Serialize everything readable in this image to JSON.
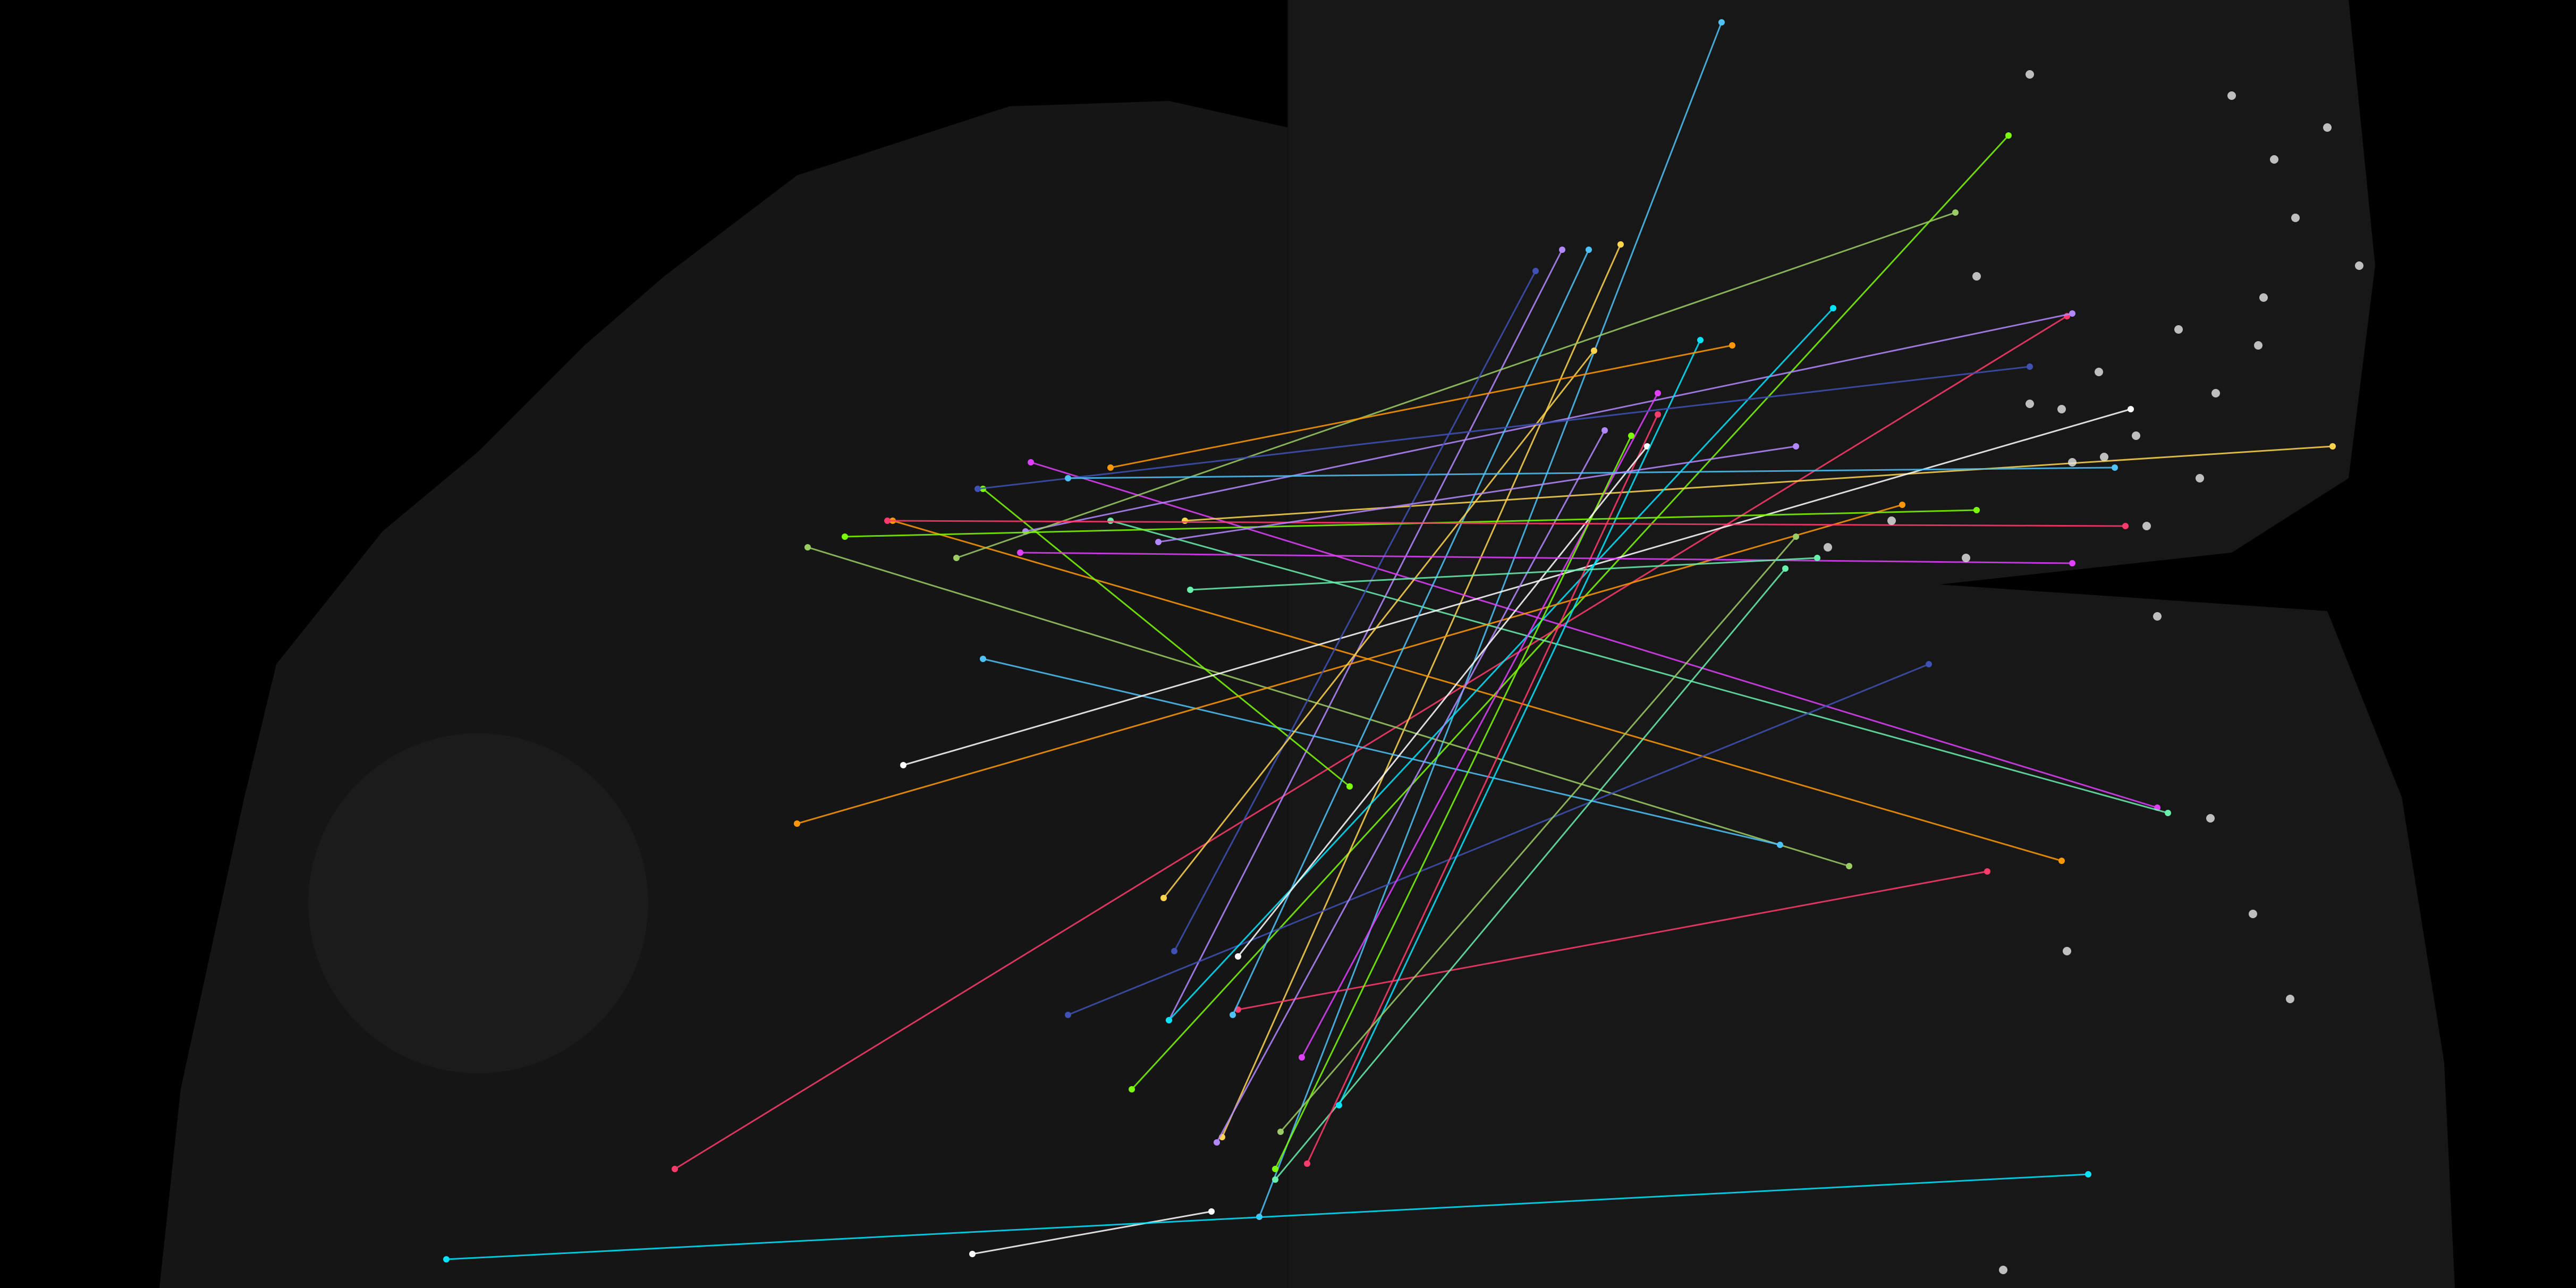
{
  "image": {
    "description_type": "keypoint-match-visualization",
    "panels": [
      {
        "name": "left-tissue-section"
      },
      {
        "name": "right-tissue-section"
      }
    ]
  },
  "colors": {
    "background": "#000000",
    "tissue_left": "#141414",
    "tissue_right": "#161616",
    "match_palette": [
      "#4fc3f7",
      "#7cfc00",
      "#ff3b6b",
      "#b388ff",
      "#ffd54f",
      "#ffffff",
      "#00e5ff",
      "#9ccc65",
      "#ff9800",
      "#e040fb",
      "#69f0ae",
      "#3f51b5"
    ]
  },
  "matches_count": 40
}
